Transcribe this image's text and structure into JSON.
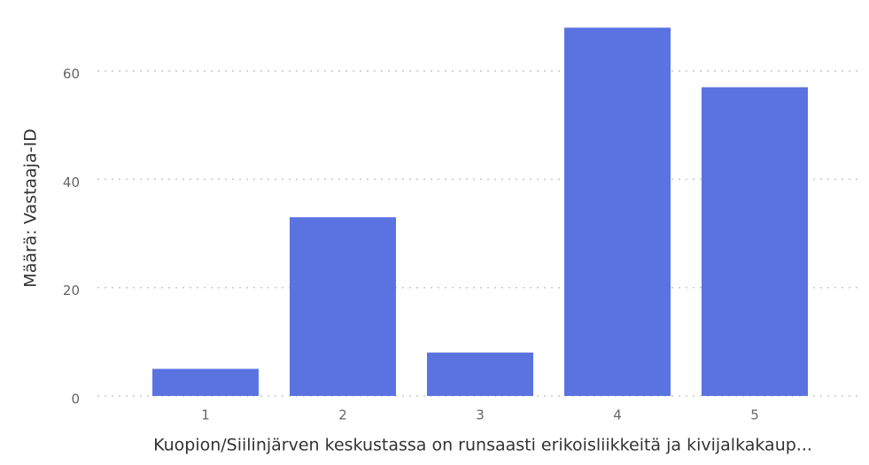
{
  "chart_data": {
    "type": "bar",
    "x_label": "Kuopion/Siilinjärven keskustassa on runsaasti erikoisliikkeitä ja kivijalkakaup...",
    "y_label": "Määrä: Vastaaja-ID",
    "categories": [
      "1",
      "2",
      "3",
      "4",
      "5"
    ],
    "values": [
      5,
      33,
      8,
      68,
      57
    ],
    "color": "#5b73e0",
    "ylim": [
      0,
      70
    ],
    "yticks": [
      0,
      20,
      40,
      60
    ],
    "grid": true
  }
}
